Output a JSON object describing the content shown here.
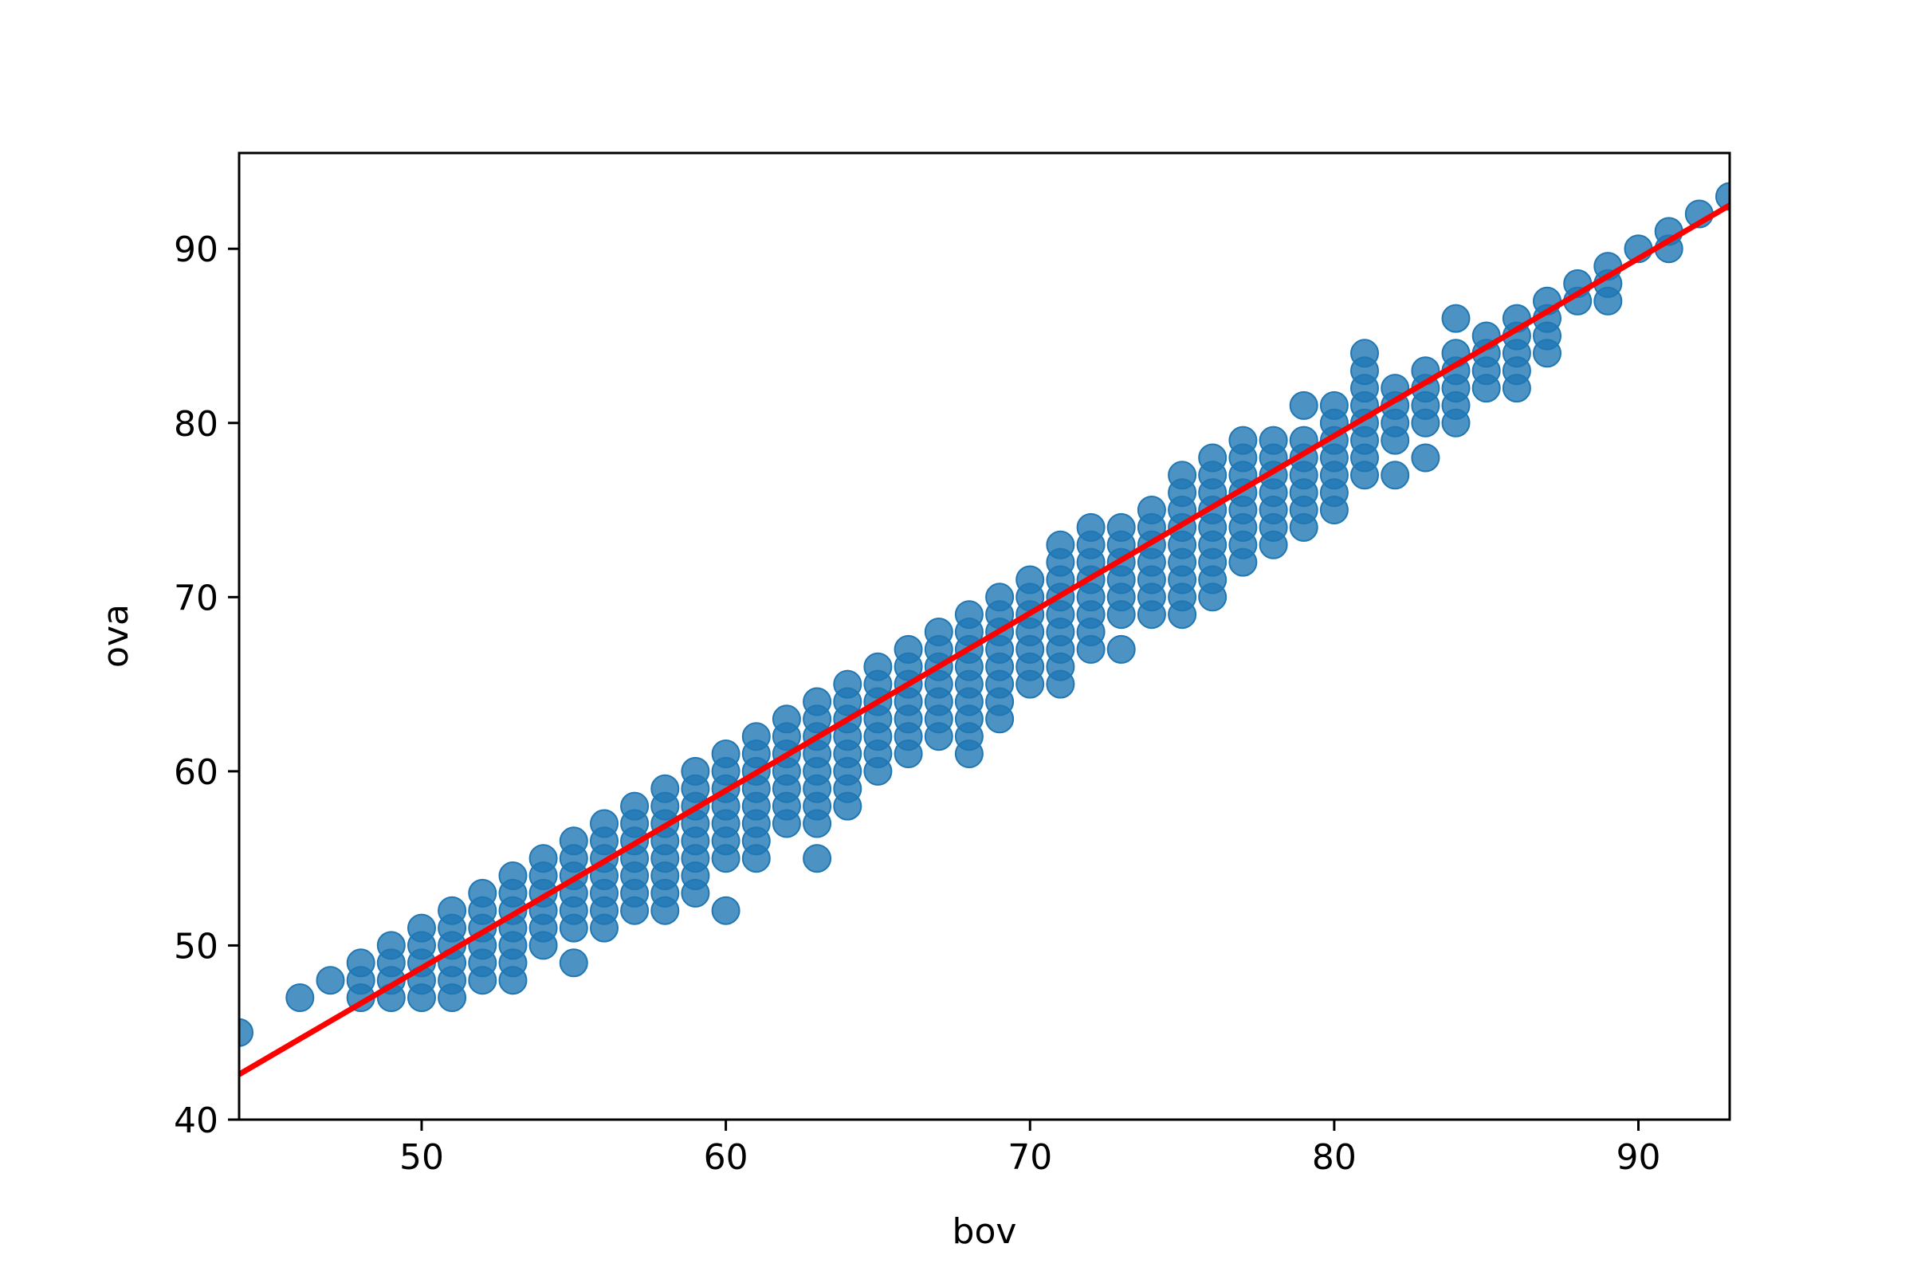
{
  "chart_data": {
    "type": "scatter",
    "title": "",
    "xlabel": "bov",
    "ylabel": "ova",
    "xlim": [
      44,
      93
    ],
    "ylim": [
      40,
      95.5
    ],
    "xticks": [
      50,
      60,
      70,
      80,
      90
    ],
    "yticks": [
      40,
      50,
      60,
      70,
      80,
      90
    ],
    "grid": false,
    "colors": {
      "points": "#1f77b4",
      "fit_line": "#ff0000"
    },
    "fit_line": {
      "x": [
        44,
        93
      ],
      "y": [
        42.6,
        92.5
      ]
    },
    "series": [
      {
        "points": [
          [
            44,
            45
          ],
          [
            46,
            47
          ],
          [
            47,
            48
          ],
          [
            48,
            47
          ],
          [
            48,
            48
          ],
          [
            48,
            49
          ],
          [
            49,
            47
          ],
          [
            49,
            48
          ],
          [
            49,
            49
          ],
          [
            49,
            50
          ],
          [
            50,
            47
          ],
          [
            50,
            48
          ],
          [
            50,
            49
          ],
          [
            50,
            50
          ],
          [
            50,
            51
          ],
          [
            51,
            47
          ],
          [
            51,
            48
          ],
          [
            51,
            49
          ],
          [
            51,
            50
          ],
          [
            51,
            51
          ],
          [
            51,
            52
          ],
          [
            52,
            48
          ],
          [
            52,
            49
          ],
          [
            52,
            50
          ],
          [
            52,
            51
          ],
          [
            52,
            52
          ],
          [
            52,
            53
          ],
          [
            53,
            48
          ],
          [
            53,
            49
          ],
          [
            53,
            50
          ],
          [
            53,
            51
          ],
          [
            53,
            52
          ],
          [
            53,
            53
          ],
          [
            53,
            54
          ],
          [
            54,
            50
          ],
          [
            54,
            51
          ],
          [
            54,
            52
          ],
          [
            54,
            53
          ],
          [
            54,
            54
          ],
          [
            54,
            55
          ],
          [
            55,
            49
          ],
          [
            55,
            51
          ],
          [
            55,
            52
          ],
          [
            55,
            53
          ],
          [
            55,
            54
          ],
          [
            55,
            55
          ],
          [
            55,
            56
          ],
          [
            56,
            51
          ],
          [
            56,
            52
          ],
          [
            56,
            53
          ],
          [
            56,
            54
          ],
          [
            56,
            55
          ],
          [
            56,
            56
          ],
          [
            56,
            57
          ],
          [
            57,
            52
          ],
          [
            57,
            53
          ],
          [
            57,
            54
          ],
          [
            57,
            55
          ],
          [
            57,
            56
          ],
          [
            57,
            57
          ],
          [
            57,
            58
          ],
          [
            58,
            52
          ],
          [
            58,
            53
          ],
          [
            58,
            54
          ],
          [
            58,
            55
          ],
          [
            58,
            56
          ],
          [
            58,
            57
          ],
          [
            58,
            58
          ],
          [
            58,
            59
          ],
          [
            59,
            53
          ],
          [
            59,
            54
          ],
          [
            59,
            55
          ],
          [
            59,
            56
          ],
          [
            59,
            57
          ],
          [
            59,
            58
          ],
          [
            59,
            59
          ],
          [
            59,
            60
          ],
          [
            60,
            52
          ],
          [
            60,
            55
          ],
          [
            60,
            56
          ],
          [
            60,
            57
          ],
          [
            60,
            58
          ],
          [
            60,
            59
          ],
          [
            60,
            60
          ],
          [
            60,
            61
          ],
          [
            61,
            55
          ],
          [
            61,
            56
          ],
          [
            61,
            57
          ],
          [
            61,
            58
          ],
          [
            61,
            59
          ],
          [
            61,
            60
          ],
          [
            61,
            61
          ],
          [
            61,
            62
          ],
          [
            62,
            57
          ],
          [
            62,
            58
          ],
          [
            62,
            59
          ],
          [
            62,
            60
          ],
          [
            62,
            61
          ],
          [
            62,
            62
          ],
          [
            62,
            63
          ],
          [
            63,
            55
          ],
          [
            63,
            57
          ],
          [
            63,
            58
          ],
          [
            63,
            59
          ],
          [
            63,
            60
          ],
          [
            63,
            61
          ],
          [
            63,
            62
          ],
          [
            63,
            63
          ],
          [
            63,
            64
          ],
          [
            64,
            58
          ],
          [
            64,
            59
          ],
          [
            64,
            60
          ],
          [
            64,
            61
          ],
          [
            64,
            62
          ],
          [
            64,
            63
          ],
          [
            64,
            64
          ],
          [
            64,
            65
          ],
          [
            65,
            60
          ],
          [
            65,
            61
          ],
          [
            65,
            62
          ],
          [
            65,
            63
          ],
          [
            65,
            64
          ],
          [
            65,
            65
          ],
          [
            65,
            66
          ],
          [
            66,
            61
          ],
          [
            66,
            62
          ],
          [
            66,
            63
          ],
          [
            66,
            64
          ],
          [
            66,
            65
          ],
          [
            66,
            66
          ],
          [
            66,
            67
          ],
          [
            67,
            62
          ],
          [
            67,
            63
          ],
          [
            67,
            64
          ],
          [
            67,
            65
          ],
          [
            67,
            66
          ],
          [
            67,
            67
          ],
          [
            67,
            68
          ],
          [
            68,
            61
          ],
          [
            68,
            62
          ],
          [
            68,
            63
          ],
          [
            68,
            64
          ],
          [
            68,
            65
          ],
          [
            68,
            66
          ],
          [
            68,
            67
          ],
          [
            68,
            68
          ],
          [
            68,
            69
          ],
          [
            69,
            63
          ],
          [
            69,
            64
          ],
          [
            69,
            65
          ],
          [
            69,
            66
          ],
          [
            69,
            67
          ],
          [
            69,
            68
          ],
          [
            69,
            69
          ],
          [
            69,
            70
          ],
          [
            70,
            65
          ],
          [
            70,
            66
          ],
          [
            70,
            67
          ],
          [
            70,
            68
          ],
          [
            70,
            69
          ],
          [
            70,
            70
          ],
          [
            70,
            71
          ],
          [
            71,
            65
          ],
          [
            71,
            66
          ],
          [
            71,
            67
          ],
          [
            71,
            68
          ],
          [
            71,
            69
          ],
          [
            71,
            70
          ],
          [
            71,
            71
          ],
          [
            71,
            72
          ],
          [
            71,
            73
          ],
          [
            72,
            67
          ],
          [
            72,
            68
          ],
          [
            72,
            69
          ],
          [
            72,
            70
          ],
          [
            72,
            71
          ],
          [
            72,
            72
          ],
          [
            72,
            73
          ],
          [
            72,
            74
          ],
          [
            73,
            67
          ],
          [
            73,
            69
          ],
          [
            73,
            70
          ],
          [
            73,
            71
          ],
          [
            73,
            72
          ],
          [
            73,
            73
          ],
          [
            73,
            74
          ],
          [
            74,
            69
          ],
          [
            74,
            70
          ],
          [
            74,
            71
          ],
          [
            74,
            72
          ],
          [
            74,
            73
          ],
          [
            74,
            74
          ],
          [
            74,
            75
          ],
          [
            75,
            69
          ],
          [
            75,
            70
          ],
          [
            75,
            71
          ],
          [
            75,
            72
          ],
          [
            75,
            73
          ],
          [
            75,
            74
          ],
          [
            75,
            75
          ],
          [
            75,
            76
          ],
          [
            75,
            77
          ],
          [
            76,
            70
          ],
          [
            76,
            71
          ],
          [
            76,
            72
          ],
          [
            76,
            73
          ],
          [
            76,
            74
          ],
          [
            76,
            75
          ],
          [
            76,
            76
          ],
          [
            76,
            77
          ],
          [
            76,
            78
          ],
          [
            77,
            72
          ],
          [
            77,
            73
          ],
          [
            77,
            74
          ],
          [
            77,
            75
          ],
          [
            77,
            76
          ],
          [
            77,
            77
          ],
          [
            77,
            78
          ],
          [
            77,
            79
          ],
          [
            78,
            73
          ],
          [
            78,
            74
          ],
          [
            78,
            75
          ],
          [
            78,
            76
          ],
          [
            78,
            77
          ],
          [
            78,
            78
          ],
          [
            78,
            79
          ],
          [
            79,
            74
          ],
          [
            79,
            75
          ],
          [
            79,
            76
          ],
          [
            79,
            77
          ],
          [
            79,
            78
          ],
          [
            79,
            79
          ],
          [
            79,
            81
          ],
          [
            80,
            75
          ],
          [
            80,
            76
          ],
          [
            80,
            77
          ],
          [
            80,
            78
          ],
          [
            80,
            79
          ],
          [
            80,
            80
          ],
          [
            80,
            81
          ],
          [
            81,
            77
          ],
          [
            81,
            78
          ],
          [
            81,
            79
          ],
          [
            81,
            80
          ],
          [
            81,
            81
          ],
          [
            81,
            82
          ],
          [
            81,
            83
          ],
          [
            81,
            84
          ],
          [
            82,
            77
          ],
          [
            82,
            79
          ],
          [
            82,
            80
          ],
          [
            82,
            81
          ],
          [
            82,
            82
          ],
          [
            83,
            78
          ],
          [
            83,
            80
          ],
          [
            83,
            81
          ],
          [
            83,
            82
          ],
          [
            83,
            83
          ],
          [
            84,
            80
          ],
          [
            84,
            81
          ],
          [
            84,
            82
          ],
          [
            84,
            83
          ],
          [
            84,
            84
          ],
          [
            84,
            86
          ],
          [
            85,
            82
          ],
          [
            85,
            83
          ],
          [
            85,
            84
          ],
          [
            85,
            85
          ],
          [
            86,
            82
          ],
          [
            86,
            83
          ],
          [
            86,
            84
          ],
          [
            86,
            85
          ],
          [
            86,
            86
          ],
          [
            87,
            84
          ],
          [
            87,
            85
          ],
          [
            87,
            86
          ],
          [
            87,
            87
          ],
          [
            88,
            87
          ],
          [
            88,
            88
          ],
          [
            89,
            87
          ],
          [
            89,
            88
          ],
          [
            89,
            89
          ],
          [
            90,
            90
          ],
          [
            91,
            90
          ],
          [
            91,
            91
          ],
          [
            92,
            92
          ],
          [
            93,
            93
          ]
        ]
      }
    ]
  }
}
